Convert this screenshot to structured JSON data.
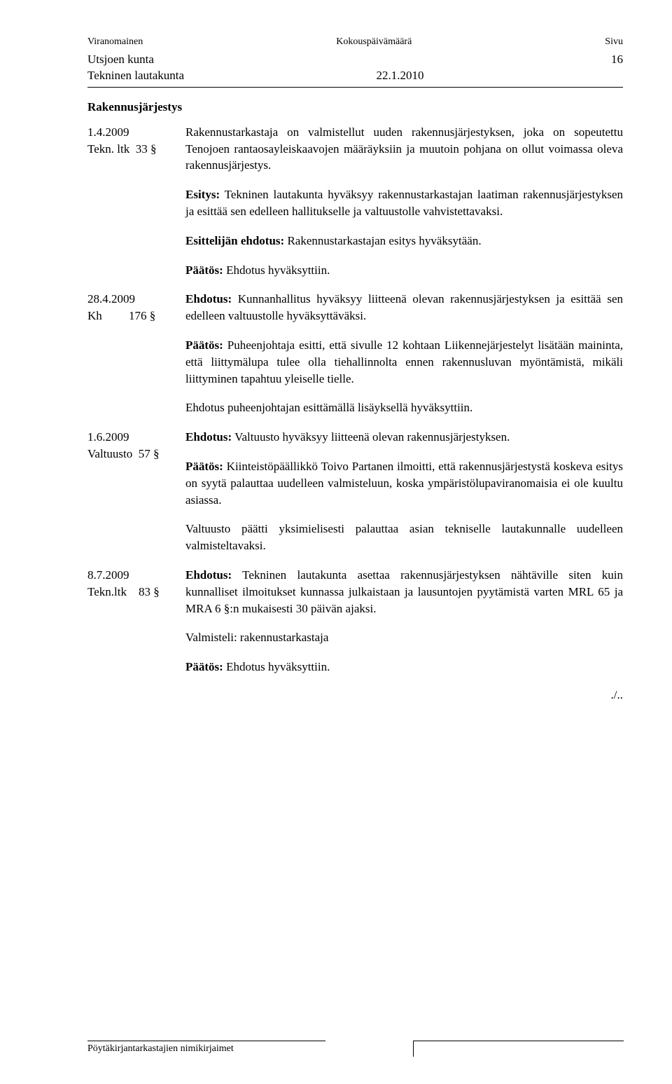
{
  "header": {
    "left": "Viranomainen",
    "mid": "Kokouspäivämäärä",
    "right": "Sivu"
  },
  "subheader": {
    "municipality": "Utsjoen kunta",
    "board": "Tekninen lautakunta",
    "date": "22.1.2010",
    "page": "16"
  },
  "title": "Rakennusjärjestys",
  "entries": [
    {
      "ref_lines": [
        "1.4.2009",
        "Tekn. ltk  33 §"
      ],
      "paragraphs": [
        {
          "segments": [
            {
              "text": "Rakennustarkastaja on valmistellut uuden rakennusjärjestyksen, joka on sopeutettu Tenojoen rantaosayleiskaavojen määräyksiin ja muutoin pohjana on ollut voimassa oleva rakennusjärjestys."
            }
          ]
        },
        {
          "segments": [
            {
              "text": "Esitys:",
              "bold": true
            },
            {
              "text": " Tekninen lautakunta hyväksyy rakennustarkastajan laatiman rakennusjärjestyksen ja esittää sen edelleen hallitukselle ja valtuustolle vahvistettavaksi."
            }
          ]
        },
        {
          "segments": [
            {
              "text": "Esittelijän ehdotus:",
              "bold": true
            },
            {
              "text": " Rakennustarkastajan esitys hyväksytään."
            }
          ]
        },
        {
          "segments": [
            {
              "text": "Päätös:",
              "bold": true
            },
            {
              "text": " Ehdotus hyväksyttiin."
            }
          ]
        }
      ]
    },
    {
      "ref_lines": [
        "28.4.2009",
        "Kh         176 §"
      ],
      "paragraphs": [
        {
          "segments": [
            {
              "text": "Ehdotus:",
              "bold": true
            },
            {
              "text": " Kunnanhallitus hyväksyy liitteenä olevan rakennusjärjestyksen ja esittää sen edelleen valtuustolle hyväksyttäväksi."
            }
          ]
        },
        {
          "segments": [
            {
              "text": "Päätös:",
              "bold": true
            },
            {
              "text": " Puheenjohtaja esitti, että sivulle 12 kohtaan Liikennejärjestelyt lisätään maininta, että liittymälupa tulee olla tiehallinnolta ennen rakennusluvan myöntämistä, mikäli liittyminen tapahtuu yleiselle tielle."
            }
          ]
        },
        {
          "segments": [
            {
              "text": "Ehdotus puheenjohtajan esittämällä lisäyksellä hyväksyttiin."
            }
          ]
        }
      ]
    },
    {
      "ref_lines": [
        "1.6.2009",
        "Valtuusto  57 §"
      ],
      "paragraphs": [
        {
          "segments": [
            {
              "text": "Ehdotus:",
              "bold": true
            },
            {
              "text": " Valtuusto hyväksyy liitteenä olevan rakennusjärjestyksen."
            }
          ]
        },
        {
          "segments": [
            {
              "text": "Päätös:",
              "bold": true
            },
            {
              "text": "  Kiinteistöpäällikkö  Toivo  Partanen  ilmoitti,  että rakennusjärjestystä koskeva esitys on syytä palauttaa uudelleen valmisteluun, koska ympäristölupaviranomaisia ei ole kuultu asiassa."
            }
          ]
        },
        {
          "segments": [
            {
              "text": "Valtuusto päätti yksimielisesti palauttaa asian tekniselle lautakunnalle uudelleen valmisteltavaksi."
            }
          ]
        }
      ]
    },
    {
      "ref_lines": [
        "8.7.2009",
        "Tekn.ltk    83 §"
      ],
      "paragraphs": [
        {
          "segments": [
            {
              "text": "Ehdotus:",
              "bold": true
            },
            {
              "text": " Tekninen lautakunta asettaa rakennusjärjestyksen nähtäville siten kuin kunnalliset ilmoitukset kunnassa julkaistaan ja lausuntojen pyytämistä varten MRL 65 ja MRA 6 §:n mukaisesti 30 päivän ajaksi."
            }
          ]
        },
        {
          "segments": [
            {
              "text": "Valmisteli: rakennustarkastaja"
            }
          ]
        },
        {
          "segments": [
            {
              "text": "Päätös:",
              "bold": true
            },
            {
              "text": " Ehdotus hyväksyttiin."
            }
          ]
        }
      ]
    }
  ],
  "continuation": "./..",
  "footer": "Pöytäkirjantarkastajien nimikirjaimet"
}
